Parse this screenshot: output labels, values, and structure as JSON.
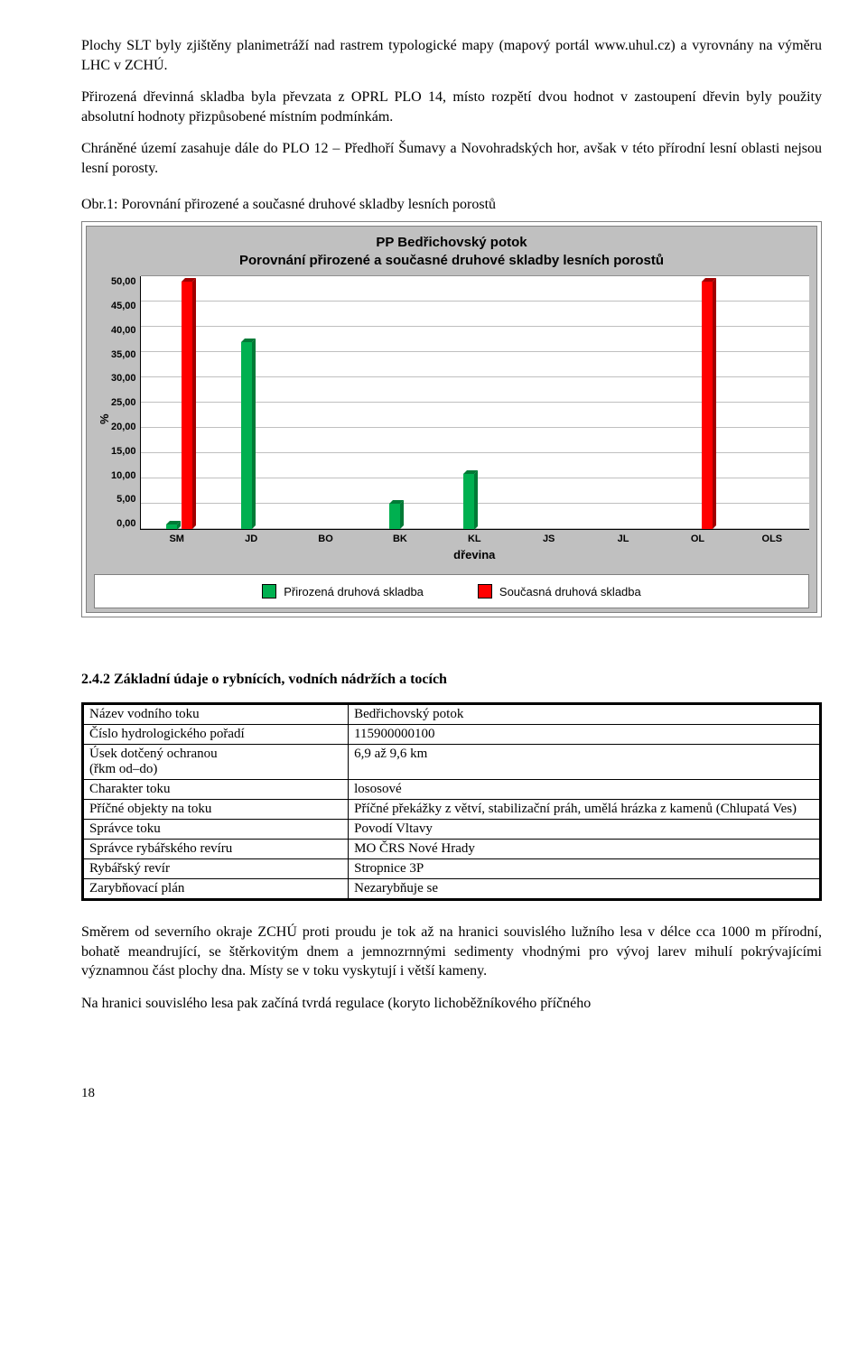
{
  "paragraphs": {
    "p1": "Plochy SLT byly zjištěny planimetráží nad rastrem typologické mapy (mapový portál www.uhul.cz) a vyrovnány na výměru LHC v ZCHÚ.",
    "p2": "Přirozená dřevinná skladba byla převzata z OPRL PLO 14, místo rozpětí dvou hodnot v zastoupení dřevin byly použity absolutní hodnoty přizpůsobené místním podmínkám.",
    "p3": "Chráněné území zasahuje dále do PLO 12 – Předhoří Šumavy a Novohradských hor, avšak v této přírodní lesní oblasti nejsou lesní porosty.",
    "fig_caption": "Obr.1: Porovnání přirozené a současné druhové skladby lesních porostů"
  },
  "chart": {
    "type": "bar",
    "title_line1": "PP Bedřichovský potok",
    "title_line2": "Porovnání přirozené a současné druhové skladby lesních porostů",
    "y_label": "%",
    "x_label": "dřevina",
    "categories": [
      "SM",
      "JD",
      "BO",
      "BK",
      "KL",
      "JS",
      "JL",
      "OL",
      "OLS"
    ],
    "series": [
      {
        "name": "Přirozená druhová skladba",
        "color": "#00b050",
        "color_dark": "#007a36",
        "values": [
          1.0,
          37.0,
          0.0,
          5.0,
          11.0,
          0.0,
          0.0,
          0.0,
          0.0
        ]
      },
      {
        "name": "Současná druhová skladba",
        "color": "#ff0000",
        "color_dark": "#a00000",
        "values": [
          49.0,
          0.0,
          0.0,
          0.0,
          0.0,
          0.0,
          0.0,
          49.0,
          0.0
        ]
      }
    ],
    "y_ticks": [
      "50,00",
      "45,00",
      "40,00",
      "35,00",
      "30,00",
      "25,00",
      "20,00",
      "15,00",
      "10,00",
      "5,00",
      "0,00"
    ],
    "y_max": 50,
    "background": "#c0c0c0",
    "plot_bg": "#ffffff",
    "grid_color": "#000000"
  },
  "section_heading": "2.4.2  Základní údaje o rybnících, vodních nádržích a tocích",
  "table": {
    "rows": [
      [
        "Název vodního toku",
        "Bedřichovský potok"
      ],
      [
        "Číslo hydrologického pořadí",
        "115900000100"
      ],
      [
        "Úsek dotčený ochranou\n(řkm od–do)",
        "6,9 až 9,6 km"
      ],
      [
        "Charakter toku",
        "lososové"
      ],
      [
        "Příčné objekty na toku",
        "Příčné překážky z větví, stabilizační práh, umělá hrázka z kamenů (Chlupatá Ves)"
      ],
      [
        "Správce toku",
        "Povodí Vltavy"
      ],
      [
        "Správce rybářského revíru",
        "MO ČRS Nové Hrady"
      ],
      [
        "Rybářský revír",
        "Stropnice 3P"
      ],
      [
        "Zarybňovací plán",
        "Nezarybňuje se"
      ]
    ]
  },
  "paragraphs2": {
    "p4": "Směrem od severního okraje ZCHÚ proti proudu je tok až na hranici souvislého lužního lesa v délce cca 1000 m přírodní, bohatě meandrující, se štěrkovitým dnem a jemnozrnnými sedimenty vhodnými pro vývoj larev mihulí pokrývajícími významnou část plochy dna. Místy se v toku vyskytují i větší kameny.",
    "p5": "Na hranici souvislého lesa pak začíná tvrdá regulace (koryto lichoběžníkového příčného"
  },
  "page_number": "18"
}
